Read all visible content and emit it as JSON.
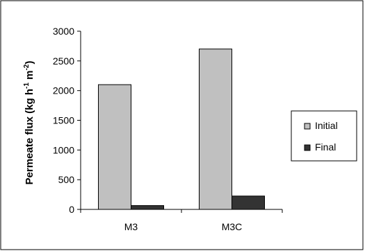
{
  "chart_data": {
    "type": "bar",
    "categories": [
      "M3",
      "M3C"
    ],
    "series": [
      {
        "name": "Initial",
        "values": [
          2100,
          2700
        ],
        "color": "#c0c0c0"
      },
      {
        "name": "Final",
        "values": [
          65,
          225
        ],
        "color": "#333333"
      }
    ],
    "ylabel": {
      "main": "Permeate flux (kg h",
      "sup1": "-1",
      "mid": " m",
      "sup2": "-2",
      "end": ")"
    },
    "ylim": [
      0,
      3000
    ],
    "yticks": [
      0,
      500,
      1000,
      1500,
      2000,
      2500,
      3000
    ],
    "grid": false,
    "legend": "right"
  }
}
